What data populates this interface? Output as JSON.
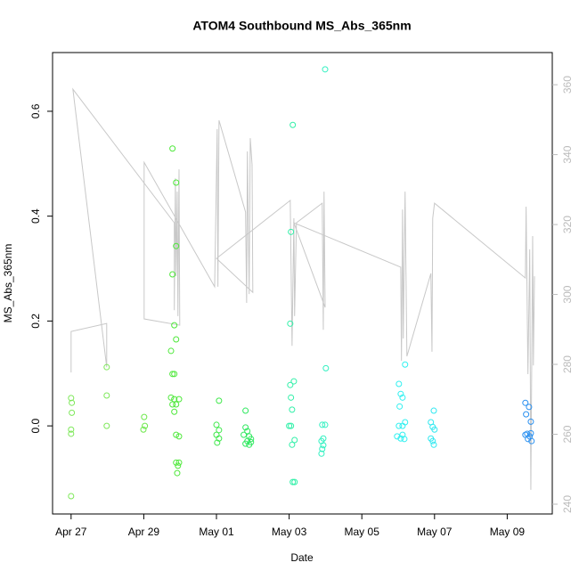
{
  "chart_data": {
    "type": "scatter",
    "title": "ATOM4 Southbound MS_Abs_365nm",
    "x_label": "Date",
    "y_label": "MS_Abs_365nm",
    "xlim": [
      -0.51,
      13.24
    ],
    "xticks": [
      {
        "value": 0,
        "label": "Apr 27"
      },
      {
        "value": 2,
        "label": "Apr 29"
      },
      {
        "value": 4,
        "label": "May 01"
      },
      {
        "value": 6,
        "label": "May 03"
      },
      {
        "value": 8,
        "label": "May 05"
      },
      {
        "value": 10,
        "label": "May 07"
      },
      {
        "value": 12,
        "label": "May 09"
      }
    ],
    "ylim": [
      -0.168,
      0.712
    ],
    "yticks": [
      {
        "value": 0,
        "label": "0.0"
      },
      0.2,
      0.4,
      0.6
    ],
    "y2lim": [
      237.2,
      369.2
    ],
    "y2ticks": [
      240,
      260,
      280,
      300,
      320,
      340,
      360
    ],
    "series": [
      {
        "color": "#7ee85a",
        "x": [
          0,
          0.02,
          0.02,
          0,
          0,
          0,
          0.98,
          0.98,
          0.98
        ],
        "values": [
          0.053,
          0.044,
          0.025,
          -0.007,
          -0.015,
          -0.134,
          0.112,
          0.058,
          0.0
        ]
      },
      {
        "color": "#6ce84a",
        "x": [
          2.01,
          2.03,
          1.99
        ],
        "values": [
          0.017,
          0.0,
          -0.007
        ]
      },
      {
        "color": "#4ee83a",
        "x": [
          2.79,
          2.89,
          2.89,
          2.79,
          2.84,
          2.89,
          2.75,
          2.79,
          2.84,
          2.75,
          2.84,
          2.97,
          2.79,
          2.89,
          2.84,
          2.89,
          2.97,
          2.89,
          2.97,
          2.94,
          2.92
        ],
        "values": [
          0.529,
          0.464,
          0.343,
          0.289,
          0.192,
          0.165,
          0.143,
          0.099,
          0.099,
          0.054,
          0.051,
          0.051,
          0.041,
          0.041,
          0.027,
          -0.017,
          -0.02,
          -0.07,
          -0.07,
          -0.076,
          -0.09
        ]
      },
      {
        "color": "#3ee84a",
        "x": [
          4.07,
          4.0,
          4.07,
          4.0,
          4.07,
          4.02
        ],
        "values": [
          0.048,
          0.002,
          -0.008,
          -0.017,
          -0.024,
          -0.032
        ]
      },
      {
        "color": "#30e860",
        "x": [
          4.8,
          4.8,
          4.85,
          4.75,
          4.9,
          4.95,
          4.85,
          4.8,
          4.9,
          4.95
        ],
        "values": [
          0.029,
          -0.003,
          -0.01,
          -0.017,
          -0.02,
          -0.025,
          -0.029,
          -0.034,
          -0.036,
          -0.031
        ]
      },
      {
        "color": "#30f0a8",
        "x": [
          6.1,
          6.05,
          6.03,
          6.13,
          6.03,
          6.05,
          6.08,
          6.05,
          6.0,
          6.15,
          6.08,
          6.1,
          6.15
        ],
        "values": [
          0.574,
          0.37,
          0.195,
          0.085,
          0.078,
          0.054,
          0.031,
          0.0,
          0.0,
          -0.027,
          -0.036,
          -0.107,
          -0.107
        ]
      },
      {
        "color": "#30f0c0",
        "x": [
          6.99,
          7.01,
          6.91,
          6.99,
          6.94,
          6.89,
          6.94,
          6.91,
          6.89
        ],
        "values": [
          0.68,
          0.11,
          0.002,
          0.002,
          -0.024,
          -0.029,
          -0.037,
          -0.044,
          -0.053
        ]
      },
      {
        "color": "#30f0f0",
        "x": [
          9.19,
          9.02,
          9.07,
          9.12,
          9.04,
          9.19,
          9.12,
          9.02,
          8.97,
          9.07,
          9.17,
          9.12
        ],
        "values": [
          0.117,
          0.08,
          0.061,
          0.054,
          0.037,
          0.007,
          0.0,
          0.0,
          -0.02,
          -0.024,
          -0.025,
          -0.017
        ]
      },
      {
        "color": "#30e8f0",
        "x": [
          9.98,
          9.9,
          9.95,
          10.0,
          9.9,
          9.95,
          9.98
        ],
        "values": [
          0.029,
          0.007,
          -0.002,
          -0.007,
          -0.024,
          -0.029,
          -0.036
        ]
      },
      {
        "color": "#2a90f0",
        "x": [
          12.5,
          12.6,
          12.52,
          12.65,
          12.65,
          12.5,
          12.55,
          12.62,
          12.57,
          12.67
        ],
        "values": [
          0.044,
          0.036,
          0.022,
          0.008,
          -0.014,
          -0.017,
          -0.015,
          -0.02,
          -0.025,
          -0.029
        ]
      },
      {
        "type": "line",
        "axis": "y2",
        "color": "#c8c8c8",
        "x": [
          0,
          0,
          0.98,
          0.98,
          0.05,
          2.84,
          2.84,
          2.87,
          2.89,
          2.92,
          2.94,
          2.97,
          2.99,
          2.01,
          2.01,
          3.95,
          4.02,
          4.04,
          4.07,
          4.8,
          4.83,
          4.85,
          4.9,
          4.93,
          4.98,
          5.0,
          4.0,
          6.03,
          6.08,
          6.13,
          6.15,
          6.2,
          6.91,
          6.94,
          6.96,
          6.99,
          6.13,
          9.07,
          9.09,
          9.12,
          9.14,
          9.19,
          9.24,
          9.9,
          9.93,
          9.95,
          10.0,
          12.5,
          12.52,
          12.57,
          12.62,
          12.65,
          12.7,
          12.72,
          12.75
        ],
        "values": [
          277.7,
          289.4,
          291.7,
          279.2,
          358.7,
          320.5,
          295.5,
          333.2,
          305.2,
          329.4,
          293.8,
          335.8,
          291.2,
          293.0,
          337.8,
          302.2,
          347.3,
          302.2,
          349.8,
          323.6,
          297.6,
          340.9,
          300.1,
          344.7,
          337.1,
          300.6,
          310.3,
          326.9,
          285.3,
          321.8,
          293.8,
          320.5,
          326.1,
          289.9,
          329.4,
          296.3,
          320.5,
          307.8,
          281.0,
          324.3,
          287.4,
          329.4,
          282.3,
          306.0,
          283.6,
          321.8,
          326.1,
          304.7,
          325.1,
          277.2,
          312.9,
          244.1,
          316.7,
          279.7,
          305.2
        ]
      }
    ]
  }
}
